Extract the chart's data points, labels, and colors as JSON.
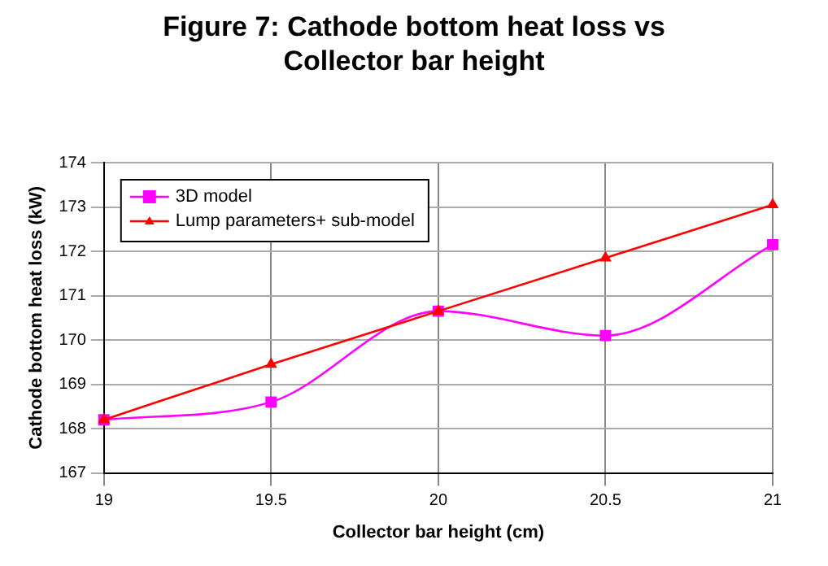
{
  "chart_data": {
    "type": "line",
    "title": "Figure 7: Cathode bottom heat loss vs Collector bar height",
    "xlabel": "Collector bar height (cm)",
    "ylabel": "Cathode bottom heat loss (kW)",
    "x": [
      19,
      19.5,
      20,
      20.5,
      21
    ],
    "xlim": [
      19,
      21
    ],
    "xticks": [
      19,
      19.5,
      20,
      20.5,
      21
    ],
    "ylim": [
      167,
      174
    ],
    "yticks": [
      167,
      168,
      169,
      170,
      171,
      172,
      173,
      174
    ],
    "grid": true,
    "legend": "top left",
    "series": [
      {
        "name": "3D model",
        "color": "#ff00ff",
        "marker": "square",
        "values": [
          168.2,
          168.6,
          170.65,
          170.1,
          172.15
        ]
      },
      {
        "name": "Lump parameters+ sub-model",
        "color": "#ff0000",
        "marker": "triangle",
        "values": [
          168.2,
          169.45,
          170.65,
          171.85,
          173.05
        ]
      }
    ]
  }
}
